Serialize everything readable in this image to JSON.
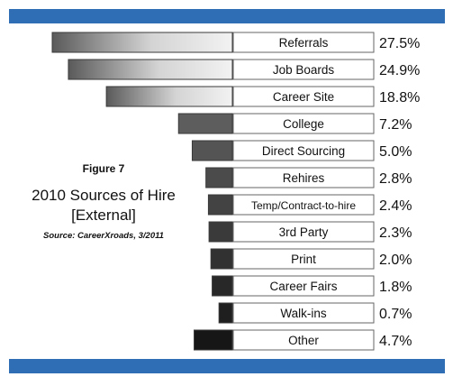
{
  "figure_label": "Figure 7",
  "title_line1": "2010 Sources of Hire",
  "title_line2": "[External]",
  "source": "Source: CareerXroads, 3/2011",
  "colors": {
    "band": "#2f6eb5",
    "bar_light": "#c9c9c9",
    "bar_dark": "#1a1a1a"
  },
  "chart_data": {
    "type": "bar",
    "orientation": "horizontal-funnel",
    "categories": [
      "Referrals",
      "Job Boards",
      "Career Site",
      "College",
      "Direct Sourcing",
      "Rehires",
      "Temp/Contract-to-hire",
      "3rd Party",
      "Print",
      "Career Fairs",
      "Walk-ins",
      "Other"
    ],
    "values": [
      27.5,
      24.9,
      18.8,
      7.2,
      5.0,
      2.8,
      2.4,
      2.3,
      2.0,
      1.8,
      0.7,
      4.7
    ],
    "value_labels": [
      "27.5%",
      "24.9%",
      "18.8%",
      "7.2%",
      "5.0%",
      "2.8%",
      "2.4%",
      "2.3%",
      "2.0%",
      "1.8%",
      "0.7%",
      "4.7%"
    ],
    "title": "2010 Sources of Hire [External]",
    "xlabel": "",
    "ylabel": "",
    "grid": false,
    "legend": "none"
  }
}
